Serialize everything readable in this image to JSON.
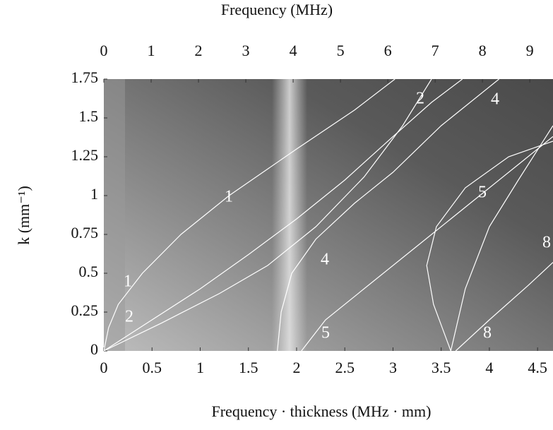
{
  "chart_data": {
    "type": "line",
    "xlabel": "Frequency · thickness (MHz · mm)",
    "x2label": "Frequency (MHz)",
    "ylabel": "k (mm⁻¹)",
    "xlim": [
      0,
      4.66
    ],
    "xticks": [
      0,
      0.5,
      1,
      1.5,
      2,
      2.5,
      3,
      3.5,
      4,
      4.5
    ],
    "x2lim": [
      0,
      9.49
    ],
    "x2ticks": [
      0,
      1,
      2,
      3,
      4,
      5,
      6,
      7,
      8,
      9
    ],
    "ylim": [
      0,
      1.75
    ],
    "yticks": [
      0,
      0.25,
      0.5,
      0.75,
      1,
      1.25,
      1.5,
      1.75
    ],
    "series": [
      {
        "color": "#ffffff",
        "x": [
          0,
          0.05,
          0.15,
          0.4,
          0.8,
          1.3,
          2.0,
          2.6,
          3.02
        ],
        "values": [
          0,
          0.15,
          0.3,
          0.5,
          0.75,
          1.0,
          1.3,
          1.55,
          1.75
        ]
      },
      {
        "color": "#ffffff",
        "x": [
          0,
          0.5,
          1,
          1.5,
          2,
          2.5,
          3,
          3.4,
          3.72
        ],
        "values": [
          0,
          0.2,
          0.4,
          0.62,
          0.85,
          1.1,
          1.38,
          1.6,
          1.75
        ]
      },
      {
        "color": "#ffffff",
        "x": [
          0,
          0.6,
          1.2,
          1.7,
          2.2,
          2.7,
          3.1,
          3.4
        ],
        "values": [
          0,
          0.18,
          0.37,
          0.55,
          0.8,
          1.12,
          1.45,
          1.75
        ]
      },
      {
        "color": "#ffffff",
        "x": [
          1.8,
          1.84,
          1.95,
          2.2,
          2.6,
          3.0,
          3.5,
          4.1
        ],
        "values": [
          0,
          0.25,
          0.5,
          0.72,
          0.95,
          1.15,
          1.45,
          1.75
        ]
      },
      {
        "color": "#ffffff",
        "x": [
          2.05,
          2.3,
          2.8,
          3.3,
          3.8,
          4.3,
          4.66
        ],
        "values": [
          0,
          0.2,
          0.45,
          0.7,
          0.95,
          1.2,
          1.38
        ]
      },
      {
        "color": "#ffffff",
        "x": [
          3.6,
          3.42,
          3.35,
          3.45,
          3.75,
          4.2,
          4.66
        ],
        "values": [
          0,
          0.3,
          0.55,
          0.8,
          1.05,
          1.25,
          1.35
        ]
      },
      {
        "color": "#ffffff",
        "x": [
          3.6,
          3.75,
          4.0,
          4.3,
          4.66
        ],
        "values": [
          0,
          0.4,
          0.8,
          1.1,
          1.45
        ]
      },
      {
        "color": "#ffffff",
        "x": [
          3.65,
          4.0,
          4.4,
          4.66
        ],
        "values": [
          0,
          0.2,
          0.42,
          0.57
        ]
      }
    ],
    "annotations": [
      "1",
      "1",
      "2",
      "2",
      "4",
      "4",
      "5",
      "5",
      "8",
      "8"
    ]
  }
}
